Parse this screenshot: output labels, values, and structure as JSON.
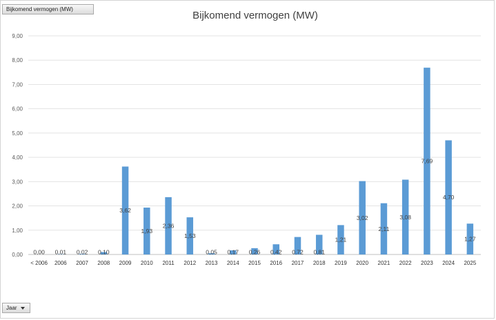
{
  "pivot": {
    "value_field": "Bijkomend vermogen (MW)",
    "axis_field": "Jaar"
  },
  "chart_data": {
    "type": "bar",
    "title": "Bijkomend vermogen (MW)",
    "xlabel": "",
    "ylabel": "",
    "ylim": [
      0,
      9
    ],
    "yticks": [
      "0,00",
      "1,00",
      "2,00",
      "3,00",
      "4,00",
      "5,00",
      "6,00",
      "7,00",
      "8,00",
      "9,00"
    ],
    "grid": true,
    "legend": "none",
    "bar_color": "#5b9bd5",
    "categories": [
      "< 2006",
      "2006",
      "2007",
      "2008",
      "2009",
      "2010",
      "2011",
      "2012",
      "2013",
      "2014",
      "2015",
      "2016",
      "2017",
      "2018",
      "2019",
      "2020",
      "2021",
      "2022",
      "2023",
      "2024",
      "2025"
    ],
    "values": [
      0.0,
      0.01,
      0.02,
      0.1,
      3.62,
      1.93,
      2.36,
      1.53,
      0.05,
      0.17,
      0.26,
      0.42,
      0.72,
      0.81,
      1.21,
      3.02,
      2.11,
      3.08,
      7.69,
      4.7,
      1.27
    ],
    "labels": [
      "0,00",
      "0,01",
      "0,02",
      "0,10",
      "3,62",
      "1,93",
      "2,36",
      "1,53",
      "0,05",
      "0,17",
      "0,26",
      "0,42",
      "0,72",
      "0,81",
      "1,21",
      "3,02",
      "2,11",
      "3,08",
      "7,69",
      "4,70",
      "1,27"
    ]
  }
}
